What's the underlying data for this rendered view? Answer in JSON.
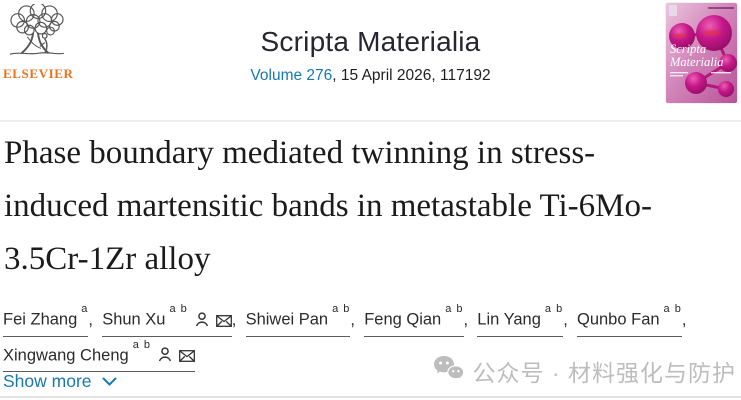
{
  "publisher": {
    "wordmark": "ELSEVIER"
  },
  "journal": {
    "title": "Scripta Materialia",
    "volume_link": "Volume 276",
    "issue_rest": ", 15 April 2026, 117192",
    "cover_title_line1": "Scripta",
    "cover_title_line2": "Materialia"
  },
  "article": {
    "title": "Phase boundary mediated twinning in stress-induced martensitic bands in metastable Ti-6Mo-3.5Cr-1Zr alloy",
    "authors": [
      {
        "name": "Fei Zhang",
        "sup": "a",
        "person": false,
        "mail": false,
        "sep": ", ",
        "br": false
      },
      {
        "name": "Shun Xu",
        "sup": "a b",
        "person": true,
        "mail": true,
        "sep": ", ",
        "br": false
      },
      {
        "name": "Shiwei Pan",
        "sup": "a b",
        "person": false,
        "mail": false,
        "sep": ", ",
        "br": false
      },
      {
        "name": "Feng Qian",
        "sup": "a b",
        "person": false,
        "mail": false,
        "sep": ", ",
        "br": false
      },
      {
        "name": "Lin Yang",
        "sup": "a b",
        "person": false,
        "mail": false,
        "sep": ", ",
        "br": false
      },
      {
        "name": "Qunbo Fan",
        "sup": "a b",
        "person": false,
        "mail": false,
        "sep": ",",
        "br": true
      },
      {
        "name": "Xingwang Cheng",
        "sup": "a b",
        "person": true,
        "mail": true,
        "sep": "",
        "br": false
      }
    ],
    "show_more_label": "Show more"
  },
  "watermark": {
    "text": "公众号 · 材料强化与防护"
  },
  "colors": {
    "link_blue": "#1878b0",
    "elsevier_orange": "#e8731e",
    "cover_magenta": "#b1147c",
    "watermark_gray": "#bdbdbd",
    "title_text": "#1b1b1b"
  }
}
